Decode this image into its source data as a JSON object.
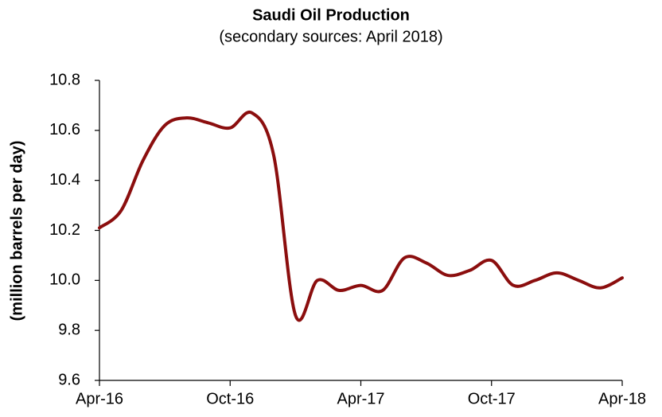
{
  "chart_data": {
    "type": "line",
    "title": "Saudi Oil Production",
    "subtitle": "(secondary sources: April 2018)",
    "y_label": "(million barrels per day)",
    "categories": [
      "Apr-16",
      null,
      null,
      null,
      null,
      null,
      "Oct-16",
      null,
      null,
      null,
      null,
      null,
      "Apr-17",
      null,
      null,
      null,
      null,
      null,
      "Oct-17",
      null,
      null,
      null,
      null,
      null,
      "Apr-18"
    ],
    "series": [
      {
        "name": "Saudi Oil Production",
        "color": "#8b0e0e",
        "values": [
          10.21,
          10.28,
          10.48,
          10.62,
          10.65,
          10.63,
          10.61,
          10.67,
          10.5,
          9.86,
          10.0,
          9.96,
          9.98,
          9.96,
          10.09,
          10.07,
          10.02,
          10.04,
          10.08,
          9.98,
          10.0,
          10.03,
          10.0,
          9.97,
          10.01
        ]
      }
    ],
    "ylim": [
      9.6,
      10.8
    ],
    "yticks": [
      9.6,
      9.8,
      {
        "value": 10,
        "label": "10.0"
      },
      10.2,
      10.4,
      10.6,
      10.8
    ],
    "grid": false
  }
}
